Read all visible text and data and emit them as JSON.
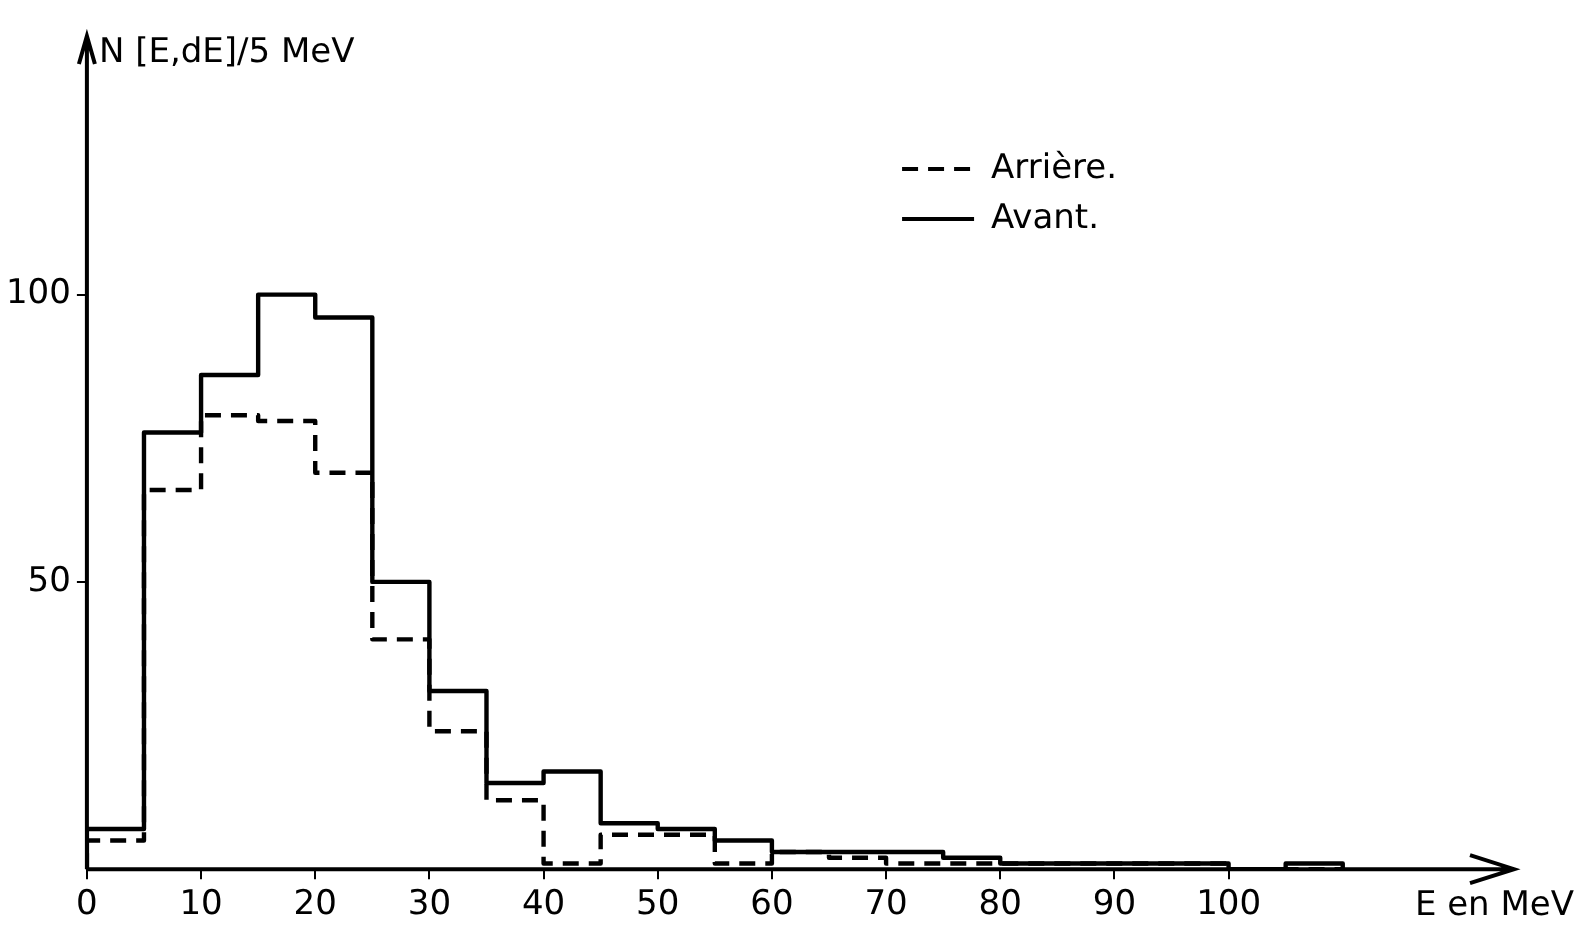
{
  "chart_data": {
    "type": "histogram",
    "ylabel": "N [E,dE]/5 MeV",
    "xlabel": "E en MeV",
    "bins": [
      0,
      5,
      10,
      15,
      20,
      25,
      30,
      35,
      40,
      45,
      50,
      55,
      60,
      65,
      70,
      75,
      80,
      85,
      90,
      95,
      100,
      105,
      110
    ],
    "series": [
      {
        "name": "Arrière.",
        "color": "#000000",
        "line_style": "dashed",
        "values": [
          5,
          66,
          79,
          78,
          69,
          40,
          24,
          12,
          1,
          6,
          6,
          1,
          3,
          2,
          1,
          1,
          1,
          1,
          1,
          1,
          0,
          0
        ]
      },
      {
        "name": "Avant.",
        "color": "#000000",
        "line_style": "solid",
        "values": [
          7,
          76,
          86,
          100,
          96,
          50,
          31,
          15,
          17,
          8,
          7,
          5,
          3,
          3,
          3,
          2,
          1,
          1,
          1,
          1,
          0,
          1
        ]
      }
    ],
    "xlim": [
      0,
      125
    ],
    "xticks": [
      0,
      10,
      20,
      30,
      40,
      50,
      60,
      70,
      80,
      90,
      100
    ],
    "ylim": [
      0,
      145
    ],
    "yticks": [
      50,
      100
    ],
    "grid": false,
    "legend": "top right",
    "marker": "none"
  }
}
